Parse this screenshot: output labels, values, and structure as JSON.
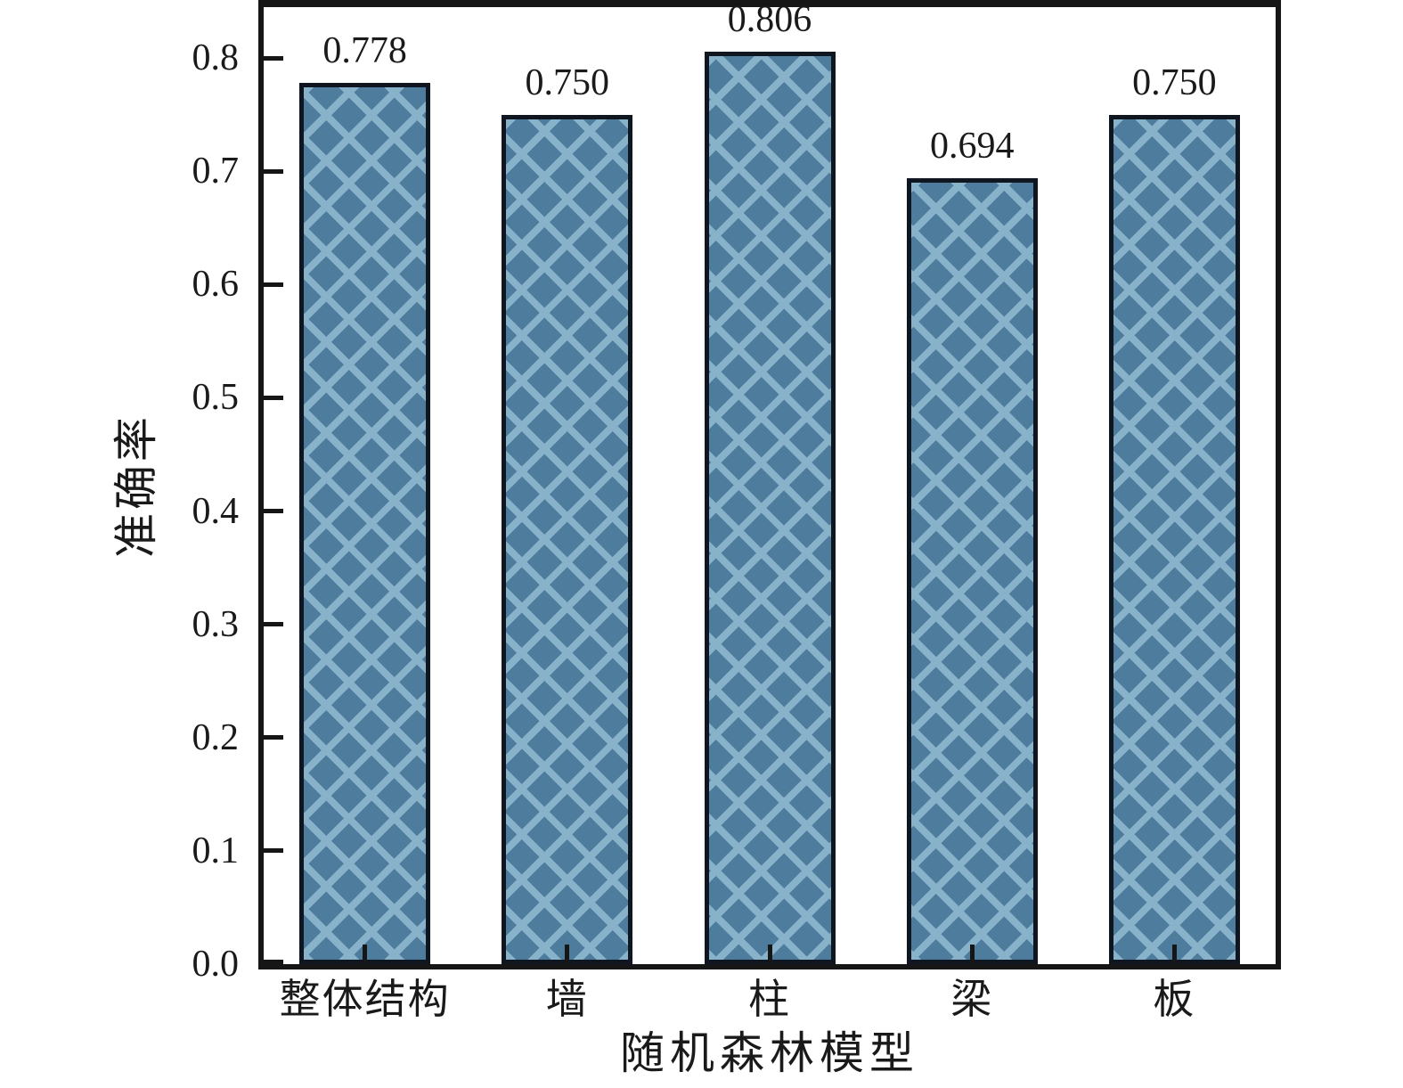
{
  "chart_data": {
    "type": "bar",
    "title": "",
    "categories": [
      "整体结构",
      "墙",
      "柱",
      "梁",
      "板"
    ],
    "values": [
      0.778,
      0.75,
      0.806,
      0.694,
      0.75
    ],
    "bar_labels": [
      "0.778",
      "0.750",
      "0.806",
      "0.694",
      "0.750"
    ],
    "xlabel": "随机森林模型",
    "ylabel": "准确率",
    "yticks": [
      "0.0",
      "0.1",
      "0.2",
      "0.3",
      "0.4",
      "0.5",
      "0.6",
      "0.7",
      "0.8"
    ],
    "ytick_values": [
      0.0,
      0.1,
      0.2,
      0.3,
      0.4,
      0.5,
      0.6,
      0.7,
      0.8
    ],
    "ylim": [
      0,
      0.845
    ],
    "grid": false,
    "legend": null,
    "hatch_style": "x-crosshatch",
    "colors": {
      "bar_fill": "#4e7c9d",
      "bar_hatch": "#88b1ca",
      "bar_border": "#10161f",
      "axis": "#161616",
      "text": "#1a1a1a",
      "background": "#ffffff"
    }
  }
}
